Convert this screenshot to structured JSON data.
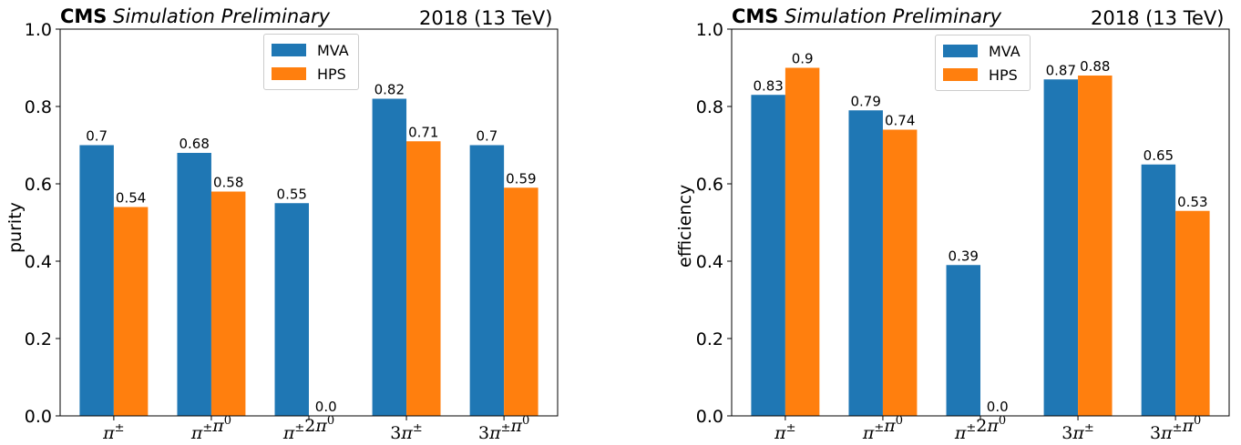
{
  "colors": {
    "mva": "#1f77b4",
    "hps": "#ff7f0e"
  },
  "charts": [
    {
      "header": {
        "cms": "CMS",
        "status": "Simulation Preliminary",
        "energy": "2018 (13 TeV)"
      },
      "ylabel": "purity"
    },
    {
      "header": {
        "cms": "CMS",
        "status": "Simulation Preliminary",
        "energy": "2018 (13 TeV)"
      },
      "ylabel": "efficiency"
    }
  ],
  "legend": {
    "mva": "MVA",
    "hps": "HPS"
  },
  "chart_data": [
    {
      "type": "bar",
      "title": "CMS Simulation Preliminary",
      "energy": "2018 (13 TeV)",
      "ylabel": "purity",
      "ylim": [
        0.0,
        1.0
      ],
      "yticks": [
        "0.0",
        "0.2",
        "0.4",
        "0.6",
        "0.8",
        "1.0"
      ],
      "categories": [
        "π±",
        "π±π0",
        "π±2π0",
        "3π±",
        "3π±π0"
      ],
      "series": [
        {
          "name": "MVA",
          "values": [
            0.7,
            0.68,
            0.55,
            0.82,
            0.7
          ],
          "labels": [
            "0.7",
            "0.68",
            "0.55",
            "0.82",
            "0.7"
          ]
        },
        {
          "name": "HPS",
          "values": [
            0.54,
            0.58,
            0.0,
            0.71,
            0.59
          ],
          "labels": [
            "0.54",
            "0.58",
            "0.0",
            "0.71",
            "0.59"
          ]
        }
      ],
      "legend_position": "top-center",
      "grid": false
    },
    {
      "type": "bar",
      "title": "CMS Simulation Preliminary",
      "energy": "2018 (13 TeV)",
      "ylabel": "efficiency",
      "ylim": [
        0.0,
        1.0
      ],
      "yticks": [
        "0.0",
        "0.2",
        "0.4",
        "0.6",
        "0.8",
        "1.0"
      ],
      "categories": [
        "π±",
        "π±π0",
        "π±2π0",
        "3π±",
        "3π±π0"
      ],
      "series": [
        {
          "name": "MVA",
          "values": [
            0.83,
            0.79,
            0.39,
            0.87,
            0.65
          ],
          "labels": [
            "0.83",
            "0.79",
            "0.39",
            "0.87",
            "0.65"
          ]
        },
        {
          "name": "HPS",
          "values": [
            0.9,
            0.74,
            0.0,
            0.88,
            0.53
          ],
          "labels": [
            "0.9",
            "0.74",
            "0.0",
            "0.88",
            "0.53"
          ]
        }
      ],
      "legend_position": "top-center",
      "grid": false
    }
  ]
}
